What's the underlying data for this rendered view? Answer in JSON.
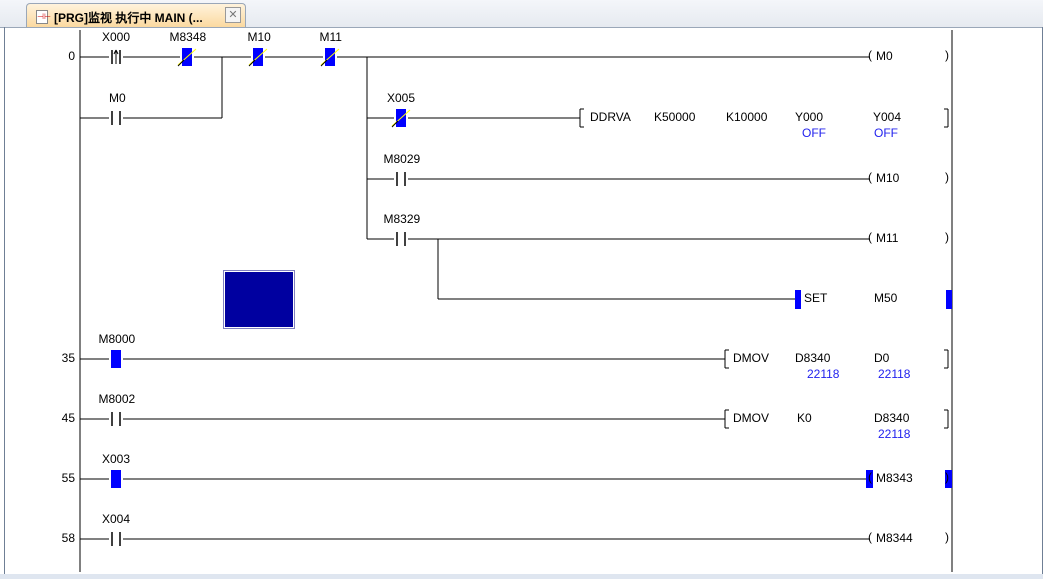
{
  "tab": {
    "title": "[PRG]监视 执行中 MAIN (...",
    "close": "✕",
    "icon": "ladder-program-icon"
  },
  "colors": {
    "active": "#0000ff",
    "wire": "#000000",
    "value": "#2222ee",
    "selection": "#0000a0"
  },
  "steps": [
    "0",
    "35",
    "45",
    "55",
    "58"
  ],
  "contacts": [
    {
      "label": "X000",
      "type": "rising-edge",
      "state": "off"
    },
    {
      "label": "M8348",
      "type": "nc",
      "state": "on"
    },
    {
      "label": "M10",
      "type": "nc",
      "state": "on"
    },
    {
      "label": "M11",
      "type": "nc",
      "state": "on"
    },
    {
      "label": "M0",
      "type": "no",
      "state": "off"
    },
    {
      "label": "X005",
      "type": "nc",
      "state": "on"
    },
    {
      "label": "M8029",
      "type": "no",
      "state": "off"
    },
    {
      "label": "M8329",
      "type": "no",
      "state": "off"
    },
    {
      "label": "M8000",
      "type": "no",
      "state": "on"
    },
    {
      "label": "M8002",
      "type": "no",
      "state": "off"
    },
    {
      "label": "X003",
      "type": "no",
      "state": "on"
    },
    {
      "label": "X004",
      "type": "no",
      "state": "off"
    }
  ],
  "coils": [
    {
      "label": "M0",
      "state": "off"
    },
    {
      "label": "M10",
      "state": "off"
    },
    {
      "label": "M11",
      "state": "off"
    },
    {
      "label": "M8343",
      "state": "on"
    },
    {
      "label": "M8344",
      "state": "off"
    }
  ],
  "instructions": [
    {
      "op": "DDRVA",
      "args": [
        "K50000",
        "K10000",
        "Y000",
        "Y004"
      ],
      "values": [
        "",
        "",
        "OFF",
        "OFF"
      ]
    },
    {
      "op": "SET",
      "args": [
        "M50"
      ],
      "values": [
        ""
      ],
      "state": "on"
    },
    {
      "op": "DMOV",
      "args": [
        "D8340",
        "D0"
      ],
      "values": [
        "22118",
        "22118"
      ]
    },
    {
      "op": "DMOV",
      "args": [
        "K0",
        "D8340"
      ],
      "values": [
        "",
        "22118"
      ]
    }
  ]
}
